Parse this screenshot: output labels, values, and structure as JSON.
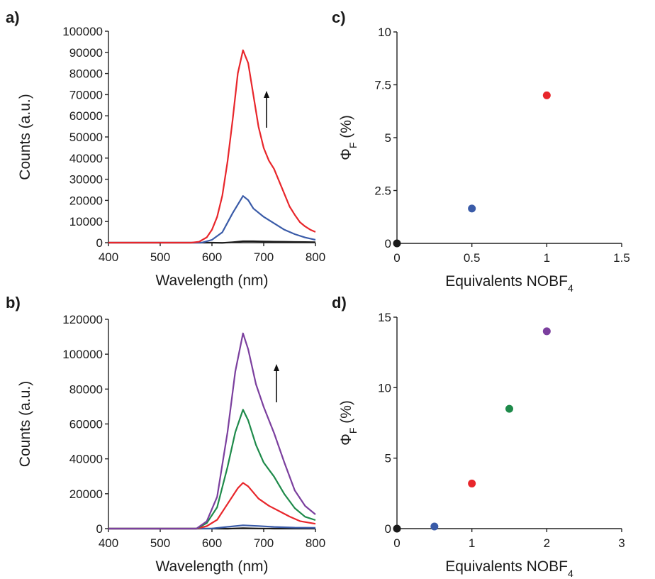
{
  "chart_data": [
    {
      "panel": "a)",
      "type": "line",
      "xlabel": "Wavelength (nm)",
      "ylabel": "Counts (a.u.)",
      "xlim": [
        400,
        800
      ],
      "ylim": [
        0,
        100000
      ],
      "xticks": [
        400,
        500,
        600,
        700,
        800
      ],
      "yticks": [
        0,
        10000,
        20000,
        30000,
        40000,
        50000,
        60000,
        70000,
        80000,
        90000,
        100000
      ],
      "grid": false,
      "legend": "none",
      "annotation": "upward arrow",
      "series": [
        {
          "color": "#1a1a1a",
          "x": [
            400,
            560,
            580,
            600,
            620,
            640,
            660,
            680,
            700,
            720,
            740,
            760,
            780,
            800
          ],
          "values": [
            0,
            0,
            0,
            0,
            100,
            400,
            800,
            700,
            500,
            350,
            250,
            150,
            100,
            50
          ]
        },
        {
          "color": "#3a5ba8",
          "x": [
            400,
            560,
            580,
            600,
            620,
            640,
            660,
            670,
            680,
            700,
            720,
            740,
            760,
            780,
            800
          ],
          "values": [
            0,
            0,
            200,
            1500,
            5000,
            14000,
            22000,
            20000,
            16000,
            12000,
            9000,
            6000,
            4000,
            2500,
            1500
          ]
        },
        {
          "color": "#e8262b",
          "x": [
            400,
            560,
            575,
            590,
            600,
            610,
            620,
            630,
            640,
            650,
            660,
            670,
            680,
            690,
            700,
            710,
            720,
            730,
            740,
            750,
            760,
            770,
            780,
            790,
            800
          ],
          "values": [
            0,
            0,
            500,
            2500,
            6000,
            12000,
            22000,
            38000,
            58000,
            80000,
            91000,
            85000,
            70000,
            55000,
            45000,
            39000,
            35000,
            29000,
            23000,
            17000,
            13000,
            9500,
            7500,
            6000,
            5000
          ]
        }
      ]
    },
    {
      "panel": "b)",
      "type": "line",
      "xlabel": "Wavelength (nm)",
      "ylabel": "Counts (a.u.)",
      "xlim": [
        400,
        800
      ],
      "ylim": [
        0,
        120000
      ],
      "xticks": [
        400,
        500,
        600,
        700,
        800
      ],
      "yticks": [
        0,
        20000,
        40000,
        60000,
        80000,
        100000,
        120000
      ],
      "grid": false,
      "legend": "none",
      "annotation": "upward arrow",
      "series": [
        {
          "color": "#1a1a1a",
          "x": [
            400,
            570,
            600,
            630,
            660,
            690,
            720,
            760,
            800
          ],
          "values": [
            0,
            0,
            0,
            200,
            500,
            300,
            150,
            50,
            0
          ]
        },
        {
          "color": "#3a5ba8",
          "x": [
            400,
            570,
            600,
            630,
            660,
            690,
            720,
            760,
            800
          ],
          "values": [
            0,
            0,
            300,
            1200,
            2000,
            1500,
            900,
            400,
            200
          ]
        },
        {
          "color": "#e8262b",
          "x": [
            400,
            570,
            590,
            610,
            630,
            650,
            660,
            670,
            690,
            710,
            730,
            750,
            770,
            800
          ],
          "values": [
            0,
            0,
            1500,
            5000,
            14000,
            23000,
            26000,
            24000,
            17000,
            13000,
            10000,
            7000,
            4500,
            3000
          ]
        },
        {
          "color": "#1e8a4a",
          "x": [
            400,
            570,
            590,
            610,
            630,
            645,
            660,
            670,
            685,
            700,
            720,
            740,
            760,
            780,
            800
          ],
          "values": [
            0,
            0,
            3000,
            12000,
            35000,
            55000,
            68000,
            62000,
            48000,
            38000,
            30000,
            20000,
            12000,
            7000,
            5000
          ]
        },
        {
          "color": "#7b3f9e",
          "x": [
            400,
            570,
            590,
            610,
            630,
            645,
            660,
            670,
            685,
            700,
            720,
            740,
            760,
            780,
            800
          ],
          "values": [
            0,
            0,
            4000,
            18000,
            55000,
            90000,
            112000,
            103000,
            83000,
            70000,
            55000,
            38000,
            22000,
            13000,
            8000
          ]
        }
      ]
    },
    {
      "panel": "c)",
      "type": "scatter",
      "xlabel": "Equivalents NOBF",
      "xlabel_sub": "4",
      "ylabel": "Φ",
      "ylabel_sub": "F",
      "ylabel_tail": " (%)",
      "xlim": [
        0,
        1.5
      ],
      "ylim": [
        0,
        10
      ],
      "xticks": [
        "0",
        "0.5",
        "1",
        "1.5"
      ],
      "yticks": [
        "0",
        "2.5",
        "5",
        "7.5",
        "10"
      ],
      "grid": false,
      "legend": "none",
      "points": [
        {
          "x": 0,
          "y": 0,
          "color": "#1a1a1a"
        },
        {
          "x": 0.5,
          "y": 1.65,
          "color": "#3a5ba8"
        },
        {
          "x": 1,
          "y": 7.0,
          "color": "#e8262b"
        }
      ]
    },
    {
      "panel": "d)",
      "type": "scatter",
      "xlabel": "Equivalents NOBF",
      "xlabel_sub": "4",
      "ylabel": "Φ",
      "ylabel_sub": "F",
      "ylabel_tail": " (%)",
      "xlim": [
        0,
        3
      ],
      "ylim": [
        0,
        15
      ],
      "xticks": [
        "0",
        "1",
        "2",
        "3"
      ],
      "yticks": [
        "0",
        "5",
        "10",
        "15"
      ],
      "grid": false,
      "legend": "none",
      "points": [
        {
          "x": 0,
          "y": 0,
          "color": "#1a1a1a"
        },
        {
          "x": 0.5,
          "y": 0.15,
          "color": "#3a5ba8"
        },
        {
          "x": 1,
          "y": 3.2,
          "color": "#e8262b"
        },
        {
          "x": 1.5,
          "y": 8.5,
          "color": "#1e8a4a"
        },
        {
          "x": 2,
          "y": 14.0,
          "color": "#7b3f9e"
        }
      ]
    }
  ]
}
